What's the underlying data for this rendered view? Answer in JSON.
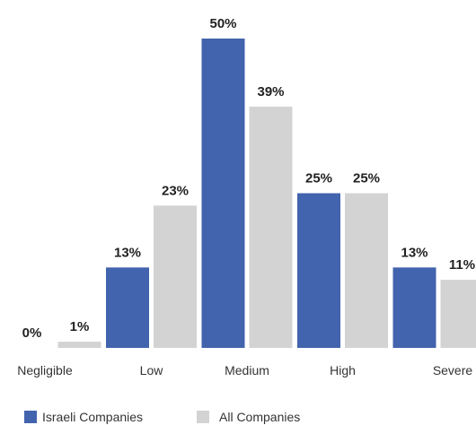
{
  "chart_data": {
    "type": "bar",
    "categories": [
      "Negligible",
      "Low",
      "Medium",
      "High",
      "Severe"
    ],
    "series": [
      {
        "name": "Israeli Companies",
        "values": [
          0,
          13,
          50,
          25,
          13
        ],
        "labels": [
          "0%",
          "13%",
          "50%",
          "25%",
          "13%"
        ],
        "color": "#4263ad"
      },
      {
        "name": "All Companies",
        "values": [
          1,
          23,
          39,
          25,
          11
        ],
        "labels": [
          "1%",
          "23%",
          "39%",
          "25%",
          "11%"
        ],
        "color": "#d3d3d3"
      }
    ],
    "title": "",
    "xlabel": "",
    "ylabel": "",
    "ylim": [
      0,
      50
    ],
    "grid": false,
    "legend": "bottom-left"
  }
}
